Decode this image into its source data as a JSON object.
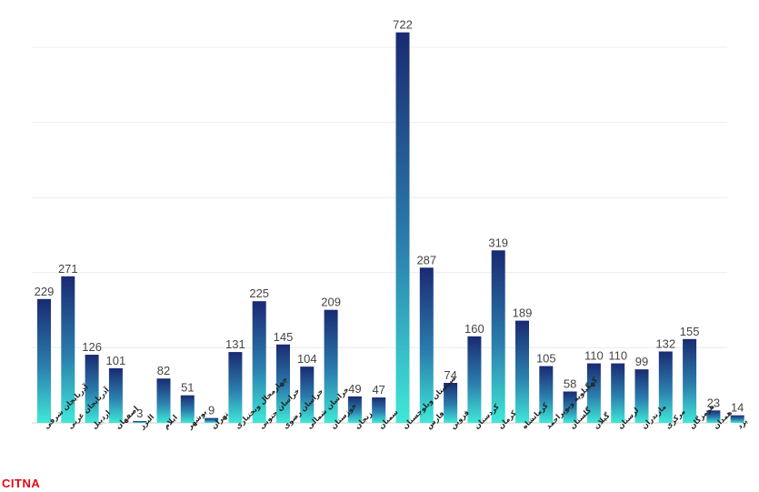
{
  "watermark": "CITNA",
  "chart_data": {
    "type": "bar",
    "title": "",
    "xlabel": "",
    "ylabel": "",
    "ylim": [
      0,
      760
    ],
    "grid": true,
    "colors": {
      "top": "#1a2a72",
      "bottom": "#40e8d8"
    },
    "categories": [
      "آذربایجان شرقی",
      "آذربایجان غربی",
      "اردبیل",
      "اصفهان",
      "البرز",
      "ایلام",
      "بوشهر",
      "تهران",
      "چهارمحال وبختیاری",
      "خراسان جنوبی",
      "خراسان رضوی",
      "خراسان شمالی",
      "خوزستان",
      "زنجان",
      "سمنان",
      "سیستان وبلوچستان",
      "فارس",
      "قزوین",
      "کردستان",
      "کرمان",
      "کرمانشاه",
      "کهگیلویه وبویراحمد",
      "گلستان",
      "گیلان",
      "لرستان",
      "مازندران",
      "مرکزی",
      "هرمزگان",
      "همدان",
      "یزد"
    ],
    "values": [
      229,
      271,
      126,
      101,
      3,
      82,
      51,
      9,
      131,
      225,
      145,
      104,
      209,
      49,
      47,
      722,
      287,
      74,
      160,
      319,
      189,
      105,
      58,
      110,
      110,
      99,
      132,
      155,
      23,
      14
    ]
  }
}
